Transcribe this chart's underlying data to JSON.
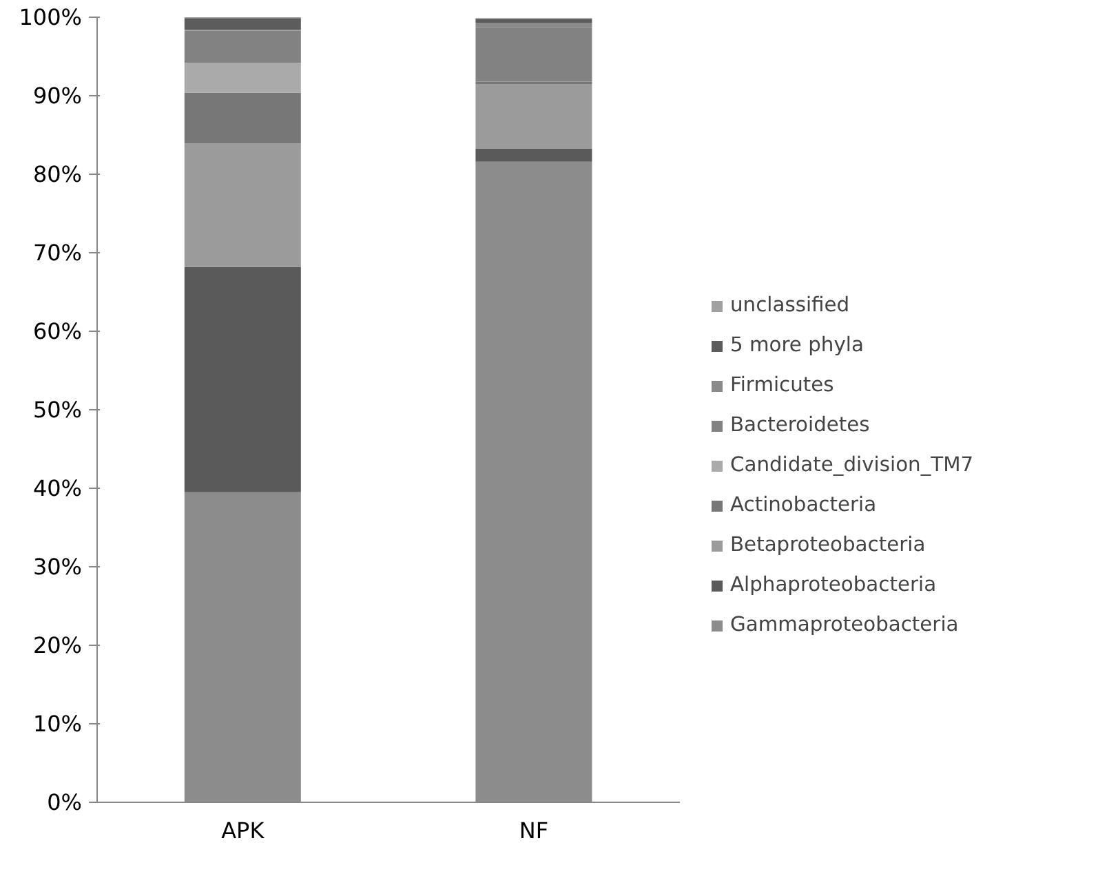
{
  "chart_data": {
    "type": "bar",
    "stacked": true,
    "categories": [
      "APK",
      "NF"
    ],
    "series": [
      {
        "name": "Gammaproteobacteria",
        "color": "#8c8c8c",
        "values": [
          39.5,
          81.6
        ]
      },
      {
        "name": "Alphaproteobacteria",
        "color": "#5a5a5a",
        "values": [
          28.7,
          1.7
        ]
      },
      {
        "name": "Betaproteobacteria",
        "color": "#9b9b9b",
        "values": [
          15.7,
          8.2
        ]
      },
      {
        "name": "Actinobacteria",
        "color": "#777777",
        "values": [
          6.5,
          0.3
        ]
      },
      {
        "name": "Candidate_division_TM7",
        "color": "#aaaaaa",
        "values": [
          3.8,
          null
        ]
      },
      {
        "name": "Bacteroidetes",
        "color": "#828282",
        "values": [
          4.1,
          6.9
        ]
      },
      {
        "name": "Firmicutes",
        "color": "#8a8a8a",
        "values": [
          0.1,
          0.6
        ]
      },
      {
        "name": "5 more phyla",
        "color": "#5c5c5c",
        "values": [
          1.5,
          0.5
        ]
      },
      {
        "name": "unclassified",
        "color": "#a0a0a0",
        "values": [
          0.1,
          0.1
        ]
      }
    ],
    "ylim": [
      0,
      100
    ],
    "yticks": [
      {
        "value": 0,
        "label": "0%"
      },
      {
        "value": 10,
        "label": "10%"
      },
      {
        "value": 20,
        "label": "20%"
      },
      {
        "value": 30,
        "label": "30%"
      },
      {
        "value": 40,
        "label": "40%"
      },
      {
        "value": 50,
        "label": "50%"
      },
      {
        "value": 60,
        "label": "60%"
      },
      {
        "value": 70,
        "label": "70%"
      },
      {
        "value": 80,
        "label": "80%"
      },
      {
        "value": 90,
        "label": "90%"
      },
      {
        "value": 100,
        "label": "100%"
      }
    ],
    "grid": false,
    "legend": "right"
  }
}
